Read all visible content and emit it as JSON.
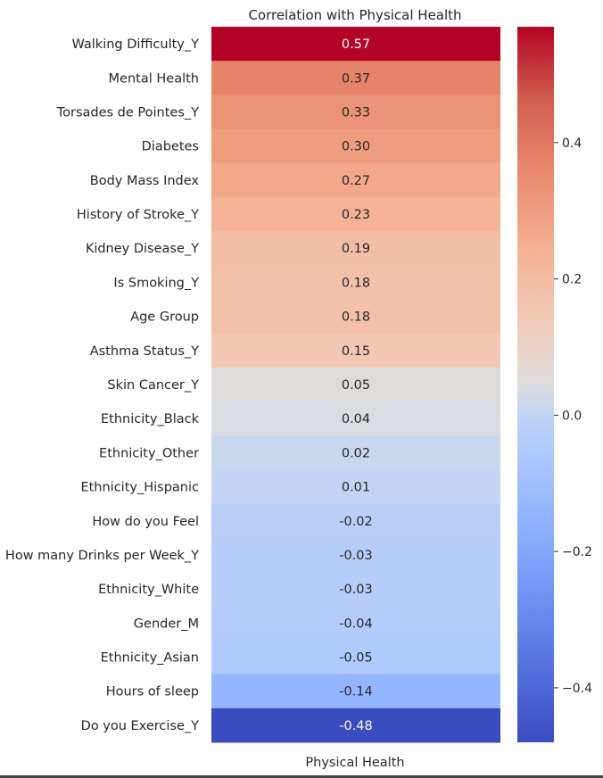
{
  "chart_data": {
    "type": "heatmap",
    "title": "Correlation with Physical Health",
    "xlabel": "Physical Health",
    "columns": [
      "Physical Health"
    ],
    "rows": [
      {
        "label": "Walking Difficulty_Y",
        "value": 0.57,
        "text": "0.57"
      },
      {
        "label": "Mental Health",
        "value": 0.37,
        "text": "0.37"
      },
      {
        "label": "Torsades de Pointes_Y",
        "value": 0.33,
        "text": "0.33"
      },
      {
        "label": "Diabetes",
        "value": 0.3,
        "text": "0.30"
      },
      {
        "label": "Body Mass Index",
        "value": 0.27,
        "text": "0.27"
      },
      {
        "label": "History of Stroke_Y",
        "value": 0.23,
        "text": "0.23"
      },
      {
        "label": "Kidney Disease_Y",
        "value": 0.19,
        "text": "0.19"
      },
      {
        "label": "Is Smoking_Y",
        "value": 0.18,
        "text": "0.18"
      },
      {
        "label": "Age Group",
        "value": 0.18,
        "text": "0.18"
      },
      {
        "label": "Asthma Status_Y",
        "value": 0.15,
        "text": "0.15"
      },
      {
        "label": "Skin Cancer_Y",
        "value": 0.05,
        "text": "0.05"
      },
      {
        "label": "Ethnicity_Black",
        "value": 0.04,
        "text": "0.04"
      },
      {
        "label": "Ethnicity_Other",
        "value": 0.02,
        "text": "0.02"
      },
      {
        "label": "Ethnicity_Hispanic",
        "value": 0.01,
        "text": "0.01"
      },
      {
        "label": "How do you Feel",
        "value": -0.02,
        "text": "-0.02"
      },
      {
        "label": "How many Drinks per Week_Y",
        "value": -0.03,
        "text": "-0.03"
      },
      {
        "label": "Ethnicity_White",
        "value": -0.03,
        "text": "-0.03"
      },
      {
        "label": "Gender_M",
        "value": -0.04,
        "text": "-0.04"
      },
      {
        "label": "Ethnicity_Asian",
        "value": -0.05,
        "text": "-0.05"
      },
      {
        "label": "Hours of sleep",
        "value": -0.14,
        "text": "-0.14"
      },
      {
        "label": "Do you Exercise_Y",
        "value": -0.48,
        "text": "-0.48"
      }
    ],
    "colormap": "coolwarm",
    "vmin": -0.48,
    "vmax": 0.57,
    "colorbar": {
      "ticks": [
        0.4,
        0.2,
        0.0,
        -0.2,
        -0.4
      ],
      "tick_labels": [
        "0.4",
        "0.2",
        "0.0",
        "−0.2",
        "−0.4"
      ]
    },
    "annotated": true,
    "grid": false,
    "legend": "colorbar-right"
  }
}
